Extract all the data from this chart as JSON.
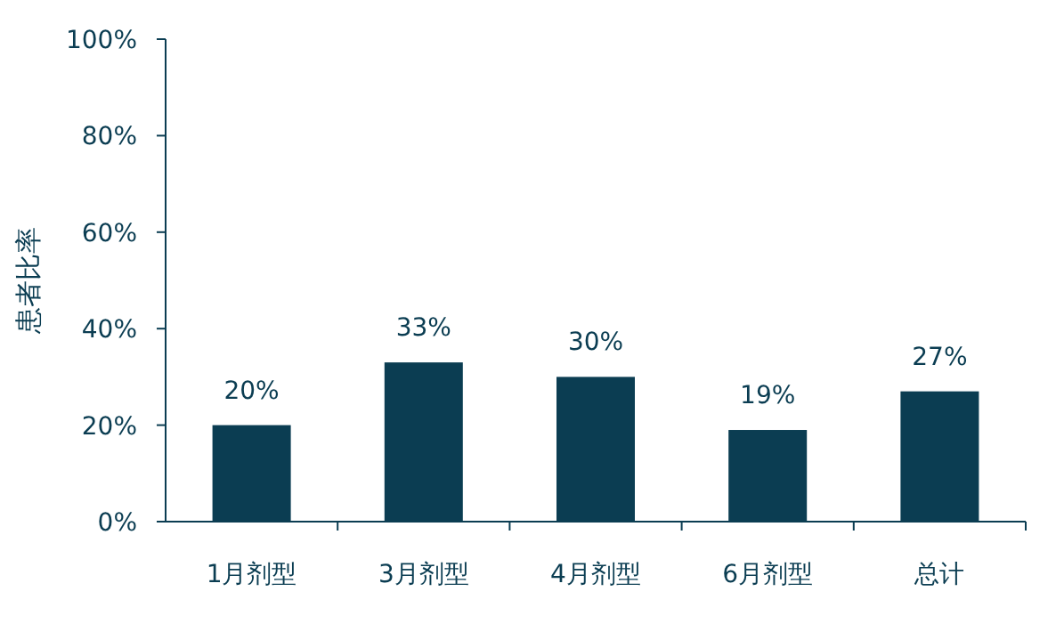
{
  "chart_data": {
    "type": "bar",
    "ylabel": "患者比率",
    "categories": [
      "1月剂型",
      "3月剂型",
      "4月剂型",
      "6月剂型",
      "总计"
    ],
    "values": [
      20,
      33,
      30,
      19,
      27
    ],
    "value_labels": [
      "20%",
      "33%",
      "30%",
      "19%",
      "27%"
    ],
    "color": "#0b3d52",
    "ylim": [
      0,
      100
    ],
    "yticks": [
      {
        "value": 0,
        "label": "0%"
      },
      {
        "value": 20,
        "label": "20%"
      },
      {
        "value": 40,
        "label": "40%"
      },
      {
        "value": 60,
        "label": "60%"
      },
      {
        "value": 80,
        "label": "80%"
      },
      {
        "value": 100,
        "label": "100%"
      }
    ]
  }
}
